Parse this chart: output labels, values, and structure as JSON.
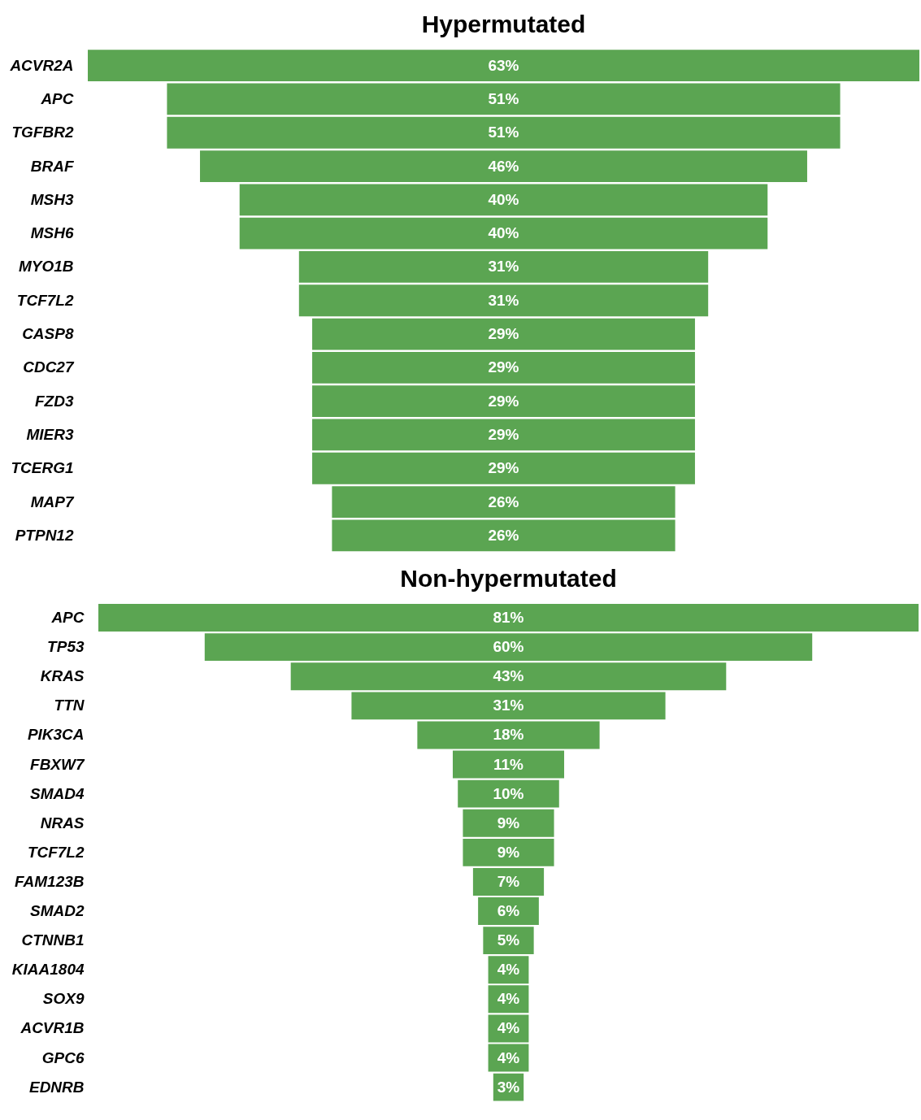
{
  "chart_data": [
    {
      "type": "other",
      "title": "Hypermutated",
      "color": "#5ba552",
      "categories": [
        "ACVR2A",
        "APC",
        "TGFBR2",
        "BRAF",
        "MSH3",
        "MSH6",
        "MYO1B",
        "TCF7L2",
        "CASP8",
        "CDC27",
        "FZD3",
        "MIER3",
        "TCERG1",
        "MAP7",
        "PTPN12"
      ],
      "values": [
        63,
        51,
        51,
        46,
        40,
        40,
        31,
        31,
        29,
        29,
        29,
        29,
        29,
        26,
        26
      ],
      "value_labels": [
        "63%",
        "51%",
        "51%",
        "46%",
        "40%",
        "40%",
        "31%",
        "31%",
        "29%",
        "29%",
        "29%",
        "29%",
        "29%",
        "26%",
        "26%"
      ]
    },
    {
      "type": "other",
      "title": "Non-hypermutated",
      "color": "#5ba552",
      "categories": [
        "APC",
        "TP53",
        "KRAS",
        "TTN",
        "PIK3CA",
        "FBXW7",
        "SMAD4",
        "NRAS",
        "TCF7L2",
        "FAM123B",
        "SMAD2",
        "CTNNB1",
        "KIAA1804",
        "SOX9",
        "ACVR1B",
        "GPC6",
        "EDNRB"
      ],
      "values": [
        81,
        60,
        43,
        31,
        18,
        11,
        10,
        9,
        9,
        7,
        6,
        5,
        4,
        4,
        4,
        4,
        3
      ],
      "value_labels": [
        "81%",
        "60%",
        "43%",
        "31%",
        "18%",
        "11%",
        "10%",
        "9%",
        "9%",
        "7%",
        "6%",
        "5%",
        "4%",
        "4%",
        "4%",
        "4%",
        "3%"
      ]
    }
  ]
}
